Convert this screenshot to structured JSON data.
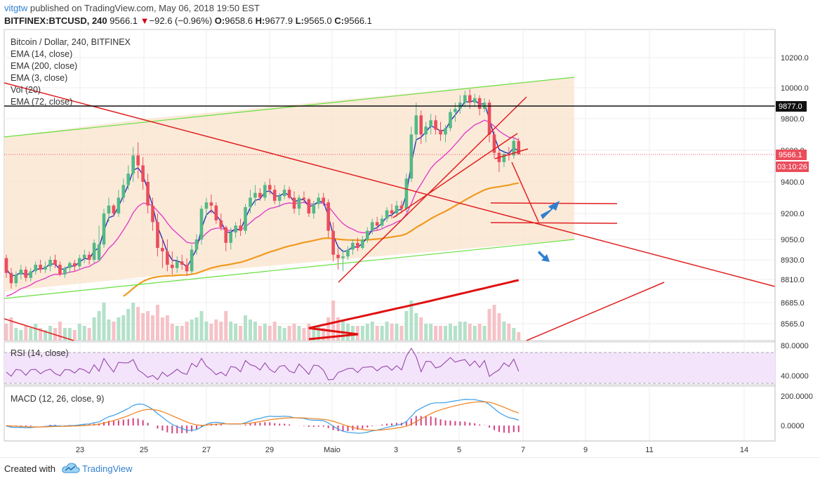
{
  "header": {
    "author": "vitgtw",
    "published_text": "published on TradingView.com, May 06, 2018 19:50 EST",
    "symbol": "BITFINEX:BTCUSD, 240",
    "last": "9566.1",
    "change_arrow": "▼",
    "change": "−92.6 (−0.96%)",
    "ohlc": {
      "o_label": "O:",
      "o": "9658.6",
      "h_label": "H:",
      "h": "9677.9",
      "l_label": "L:",
      "l": "9565.0",
      "c_label": "C:",
      "c": "9566.1"
    }
  },
  "legend": {
    "title": "Bitcoin / Dollar, 240, BITFINEX",
    "items": [
      "EMA (14, close)",
      "EMA (200, close)",
      "EMA (3, close)",
      "Vol (20)",
      "EMA (72, close)"
    ]
  },
  "rsi_label": "RSI (14, close)",
  "macd_label": "MACD (12, 26, close, 9)",
  "footer": {
    "created_with": "Created with",
    "brand": "TradingView"
  },
  "colors": {
    "up": "#53b987",
    "down": "#eb4d5c",
    "ema14": "#e040c8",
    "ema3": "#2330b8",
    "ema72": "#f09a1e",
    "ema200": "#e01010",
    "trend": "#e02020",
    "channel": "#66e040",
    "arrow": "#2f7fd0",
    "rsi_fill": "#f3e3fb"
  },
  "chart_data": {
    "type": "candlestick",
    "symbol": "BITFINEX:BTCUSD",
    "timeframe": "240",
    "price_axis_ticks": [
      10200.0,
      10000.0,
      9800.0,
      9600.0,
      9400.0,
      9200.0,
      9050.0,
      8930.0,
      8810.0,
      8685.0,
      8565.0
    ],
    "price_labels": {
      "resistance": "9877.0",
      "last": "9566.1",
      "countdown": "03:10:26"
    },
    "x_ticks": [
      "23",
      "25",
      "27",
      "29",
      "Maio",
      "3",
      "5",
      "7",
      "9",
      "11",
      "14"
    ],
    "candles": [
      [
        8940,
        8960,
        8820,
        8850
      ],
      [
        8850,
        8880,
        8760,
        8790
      ],
      [
        8790,
        8860,
        8770,
        8840
      ],
      [
        8840,
        8900,
        8810,
        8870
      ],
      [
        8870,
        8890,
        8800,
        8820
      ],
      [
        8820,
        8880,
        8800,
        8860
      ],
      [
        8860,
        8920,
        8840,
        8900
      ],
      [
        8900,
        8930,
        8850,
        8870
      ],
      [
        8870,
        8920,
        8850,
        8890
      ],
      [
        8890,
        8950,
        8860,
        8930
      ],
      [
        8930,
        8960,
        8880,
        8900
      ],
      [
        8900,
        8920,
        8830,
        8840
      ],
      [
        8840,
        8890,
        8820,
        8880
      ],
      [
        8880,
        8920,
        8850,
        8910
      ],
      [
        8910,
        8930,
        8860,
        8890
      ],
      [
        8890,
        8960,
        8870,
        8940
      ],
      [
        8940,
        8990,
        8910,
        8960
      ],
      [
        8960,
        8980,
        8900,
        8930
      ],
      [
        8930,
        9050,
        8910,
        9030
      ],
      [
        8930,
        9130,
        8920,
        9020
      ],
      [
        9020,
        9230,
        9000,
        9200
      ],
      [
        9200,
        9300,
        9150,
        9250
      ],
      [
        9250,
        9260,
        9180,
        9200
      ],
      [
        9200,
        9350,
        9180,
        9300
      ],
      [
        9300,
        9420,
        9270,
        9380
      ],
      [
        9380,
        9500,
        9350,
        9450
      ],
      [
        9450,
        9620,
        9400,
        9560
      ],
      [
        9560,
        9650,
        9420,
        9500
      ],
      [
        9500,
        9550,
        9350,
        9400
      ],
      [
        9400,
        9450,
        9200,
        9250
      ],
      [
        9250,
        9300,
        9100,
        9150
      ],
      [
        9150,
        9200,
        8950,
        9000
      ],
      [
        9000,
        9060,
        8880,
        8980
      ],
      [
        8980,
        9050,
        8860,
        8900
      ],
      [
        8900,
        8980,
        8840,
        8880
      ],
      [
        8880,
        8950,
        8850,
        8920
      ],
      [
        8920,
        8960,
        8870,
        8900
      ],
      [
        8900,
        8940,
        8830,
        8860
      ],
      [
        8860,
        9020,
        8840,
        8990
      ],
      [
        8990,
        9080,
        8960,
        9050
      ],
      [
        9050,
        9250,
        9020,
        9230
      ],
      [
        9230,
        9300,
        9180,
        9270
      ],
      [
        9270,
        9320,
        9200,
        9250
      ],
      [
        9250,
        9270,
        9140,
        9160
      ],
      [
        9160,
        9200,
        9100,
        9120
      ],
      [
        9120,
        9130,
        8980,
        9030
      ],
      [
        9030,
        9120,
        8990,
        9090
      ],
      [
        9090,
        9150,
        9060,
        9130
      ],
      [
        9130,
        9170,
        9070,
        9100
      ],
      [
        9100,
        9260,
        9080,
        9240
      ],
      [
        9240,
        9350,
        9200,
        9300
      ],
      [
        9300,
        9380,
        9250,
        9330
      ],
      [
        9330,
        9360,
        9280,
        9300
      ],
      [
        9300,
        9400,
        9280,
        9380
      ],
      [
        9380,
        9420,
        9320,
        9350
      ],
      [
        9350,
        9380,
        9260,
        9280
      ],
      [
        9280,
        9330,
        9240,
        9310
      ],
      [
        9310,
        9380,
        9290,
        9350
      ],
      [
        9350,
        9370,
        9290,
        9300
      ],
      [
        9300,
        9340,
        9200,
        9230
      ],
      [
        9230,
        9320,
        9190,
        9300
      ],
      [
        9300,
        9340,
        9270,
        9290
      ],
      [
        9290,
        9300,
        9180,
        9200
      ],
      [
        9200,
        9280,
        9170,
        9260
      ],
      [
        9260,
        9330,
        9230,
        9300
      ],
      [
        9300,
        9330,
        9250,
        9270
      ],
      [
        9270,
        9290,
        9060,
        9100
      ],
      [
        9100,
        9150,
        8920,
        8960
      ],
      [
        8960,
        9000,
        8870,
        8940
      ],
      [
        8940,
        8990,
        8860,
        8950
      ],
      [
        8950,
        9010,
        8930,
        8990
      ],
      [
        8990,
        9050,
        8960,
        9030
      ],
      [
        9030,
        9060,
        8980,
        9000
      ],
      [
        9000,
        9070,
        8990,
        9050
      ],
      [
        9050,
        9120,
        9030,
        9100
      ],
      [
        9100,
        9170,
        9080,
        9150
      ],
      [
        9150,
        9180,
        9100,
        9130
      ],
      [
        9130,
        9190,
        9110,
        9170
      ],
      [
        9170,
        9240,
        9150,
        9220
      ],
      [
        9220,
        9260,
        9170,
        9200
      ],
      [
        9200,
        9280,
        9180,
        9250
      ],
      [
        9250,
        9280,
        9200,
        9230
      ],
      [
        9230,
        9450,
        9210,
        9420
      ],
      [
        9420,
        9750,
        9400,
        9700
      ],
      [
        9700,
        9900,
        9650,
        9820
      ],
      [
        9820,
        9850,
        9640,
        9700
      ],
      [
        9700,
        9780,
        9650,
        9750
      ],
      [
        9750,
        9830,
        9700,
        9790
      ],
      [
        9790,
        9820,
        9700,
        9730
      ],
      [
        9730,
        9780,
        9660,
        9700
      ],
      [
        9700,
        9760,
        9650,
        9740
      ],
      [
        9740,
        9860,
        9720,
        9840
      ],
      [
        9840,
        9900,
        9780,
        9860
      ],
      [
        9860,
        9950,
        9830,
        9900
      ],
      [
        9900,
        9980,
        9870,
        9950
      ],
      [
        9950,
        9990,
        9860,
        9900
      ],
      [
        9900,
        9960,
        9870,
        9930
      ],
      [
        9930,
        9950,
        9820,
        9860
      ],
      [
        9860,
        9930,
        9840,
        9900
      ],
      [
        9900,
        9920,
        9650,
        9700
      ],
      [
        9700,
        9720,
        9540,
        9580
      ],
      [
        9580,
        9600,
        9460,
        9520
      ],
      [
        9520,
        9600,
        9490,
        9570
      ],
      [
        9570,
        9620,
        9530,
        9560
      ],
      [
        9560,
        9680,
        9540,
        9660
      ],
      [
        9658.6,
        9677.9,
        9565.0,
        9566.1
      ]
    ],
    "volume_ratio": [
      0.4,
      0.55,
      0.3,
      0.25,
      0.35,
      0.3,
      0.4,
      0.3,
      0.25,
      0.35,
      0.3,
      0.45,
      0.3,
      0.3,
      0.25,
      0.4,
      0.35,
      0.3,
      0.55,
      0.7,
      0.9,
      0.5,
      0.45,
      0.55,
      0.6,
      0.75,
      0.9,
      0.8,
      0.65,
      0.7,
      0.6,
      0.85,
      0.55,
      0.6,
      0.4,
      0.35,
      0.35,
      0.45,
      0.5,
      0.55,
      0.7,
      0.45,
      0.4,
      0.5,
      0.45,
      0.7,
      0.45,
      0.4,
      0.35,
      0.6,
      0.5,
      0.45,
      0.35,
      0.4,
      0.35,
      0.45,
      0.35,
      0.3,
      0.35,
      0.4,
      0.35,
      0.3,
      0.4,
      0.3,
      0.35,
      0.3,
      0.55,
      0.95,
      0.55,
      0.5,
      0.4,
      0.35,
      0.35,
      0.35,
      0.4,
      0.45,
      0.35,
      0.35,
      0.45,
      0.4,
      0.4,
      0.35,
      0.7,
      0.95,
      0.65,
      0.55,
      0.4,
      0.4,
      0.35,
      0.35,
      0.35,
      0.4,
      0.35,
      0.45,
      0.45,
      0.4,
      0.35,
      0.4,
      0.35,
      0.75,
      0.85,
      0.65,
      0.45,
      0.4,
      0.3,
      0.2
    ],
    "rsi": {
      "levels": [
        70,
        30
      ],
      "axis_ticks": [
        80.0,
        40.0
      ]
    },
    "macd": {
      "axis_ticks": [
        200.0,
        0.0
      ]
    }
  }
}
